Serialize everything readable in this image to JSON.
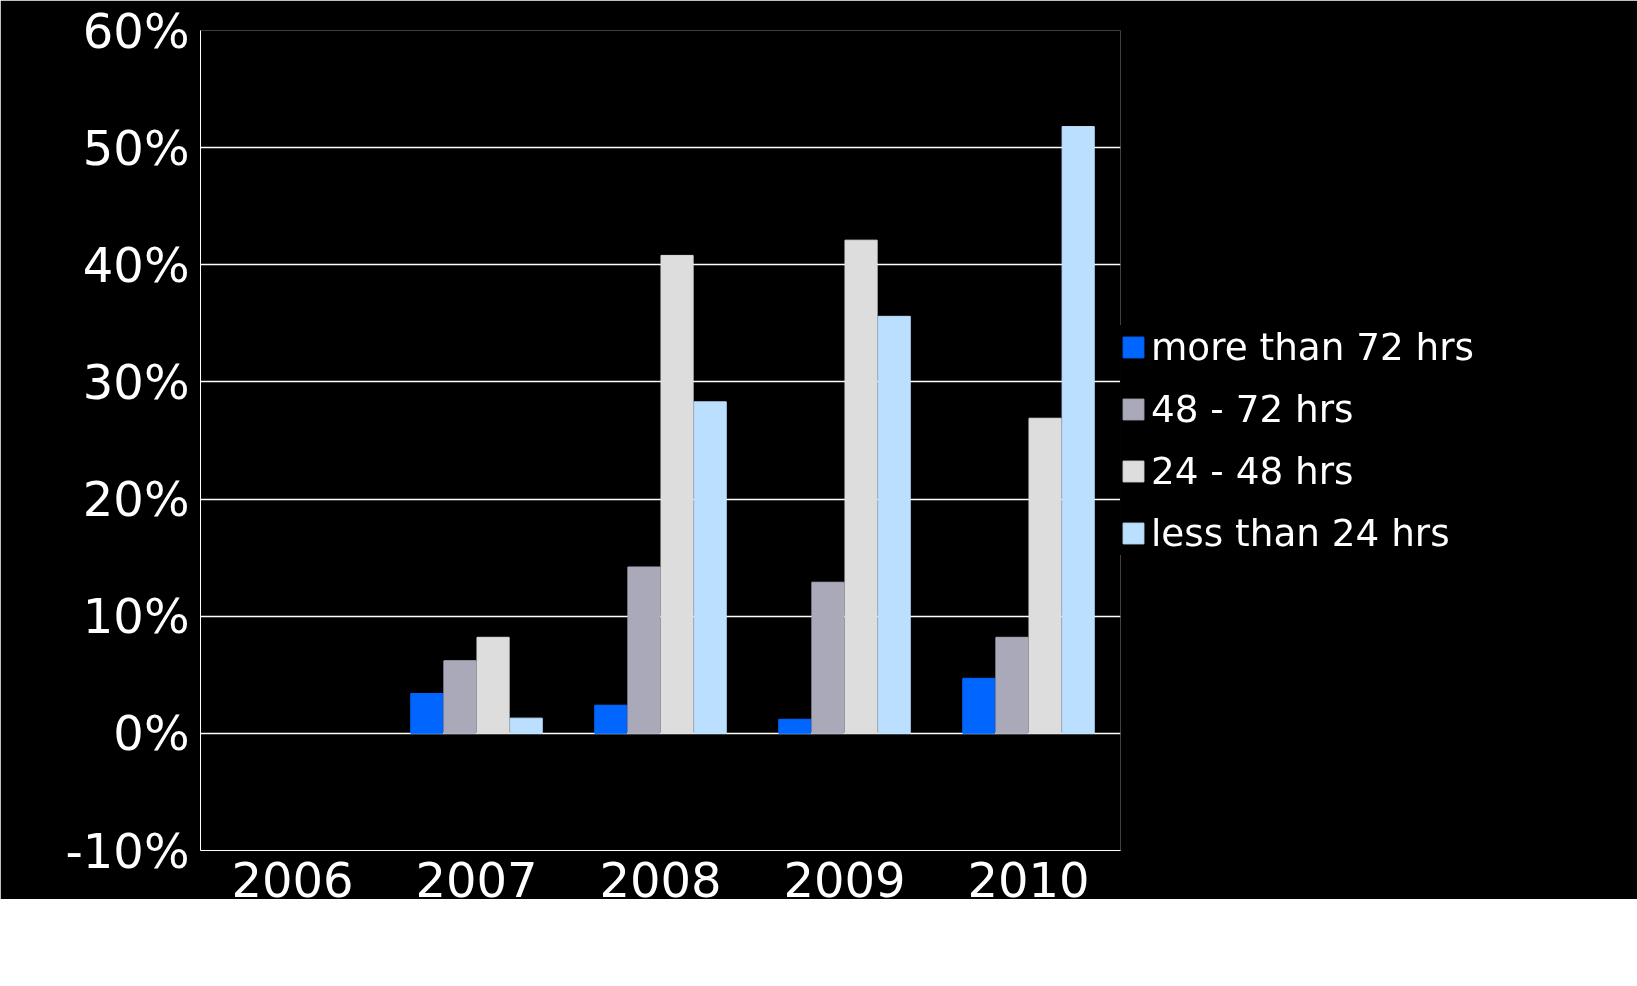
{
  "chart_data": {
    "type": "bar",
    "categories": [
      "2006",
      "2007",
      "2008",
      "2009",
      "2010"
    ],
    "series": [
      {
        "name": "more than 72 hrs",
        "color": "#0066ff",
        "values": [
          null,
          3.4,
          2.4,
          1.2,
          4.7
        ]
      },
      {
        "name": "48 - 72 hrs",
        "color": "#aaa9b9",
        "values": [
          null,
          6.2,
          14.2,
          12.9,
          8.2
        ]
      },
      {
        "name": "24 - 48 hrs",
        "color": "#dddddd",
        "values": [
          null,
          8.2,
          40.8,
          42.1,
          26.9
        ]
      },
      {
        "name": "less than 24 hrs",
        "color": "#bbe0ff",
        "values": [
          null,
          1.3,
          28.3,
          35.6,
          51.8
        ]
      }
    ],
    "ylim": [
      -10,
      60
    ],
    "yticks": [
      {
        "value": -10,
        "label": "-10%"
      },
      {
        "value": 0,
        "label": "0%"
      },
      {
        "value": 10,
        "label": "10%"
      },
      {
        "value": 20,
        "label": "20%"
      },
      {
        "value": 30,
        "label": "30%"
      },
      {
        "value": 40,
        "label": "40%"
      },
      {
        "value": 50,
        "label": "50%"
      },
      {
        "value": 60,
        "label": "60%"
      }
    ],
    "grid": "y",
    "legend": "right"
  }
}
